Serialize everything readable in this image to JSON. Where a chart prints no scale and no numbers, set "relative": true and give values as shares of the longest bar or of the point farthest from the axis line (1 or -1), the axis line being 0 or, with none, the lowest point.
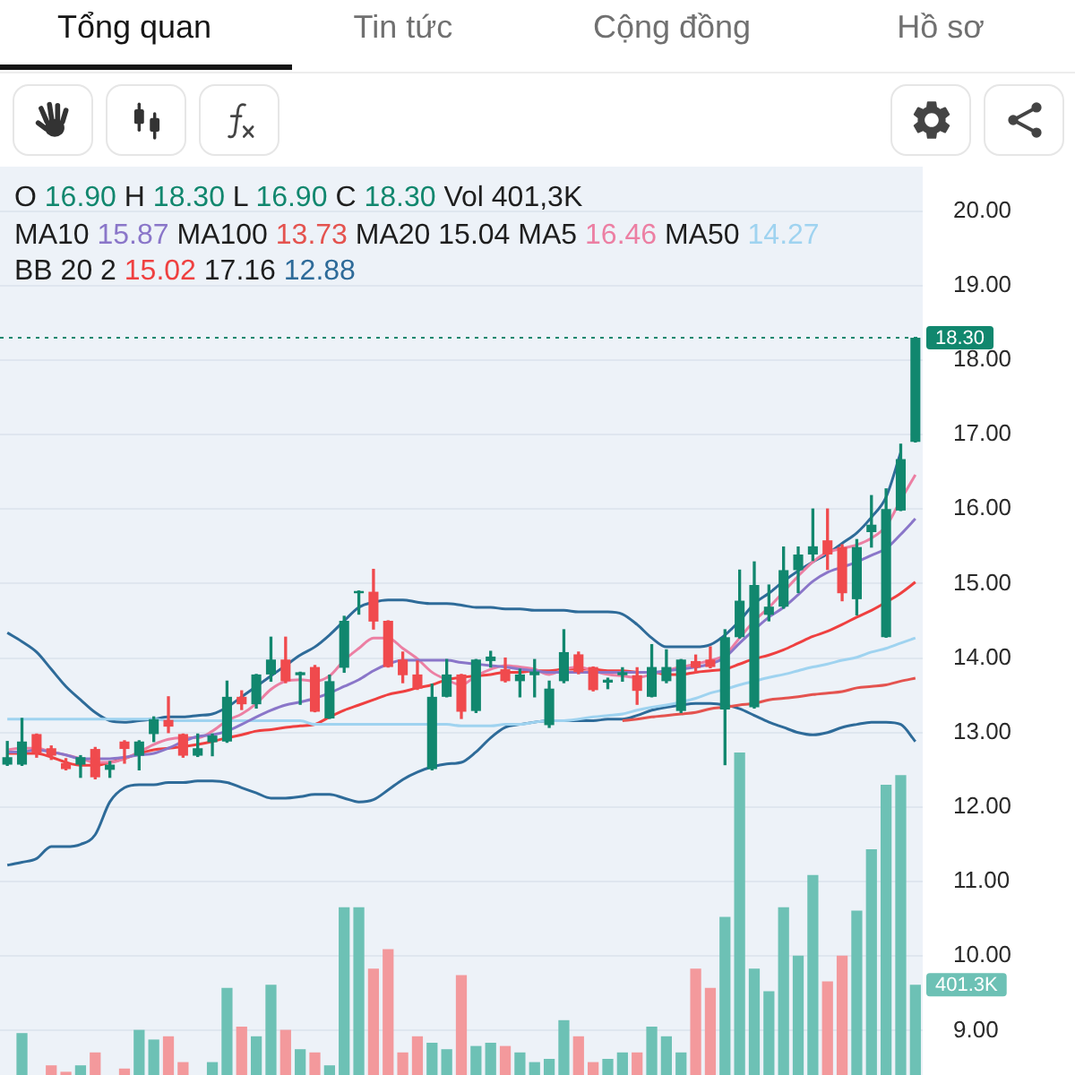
{
  "chart_data": [
    {
      "type": "candlestick",
      "annotations": [
        "Tổng quan",
        "Tin tức",
        "Cộng đồng",
        "Hồ sơ",
        "O 16.90 H 18.30 L 16.90 C 18.30 Vol 401,3K",
        "MA10 15.87 MA100 13.73 MA20 15.04 MA5 16.46 MA50 14.27",
        "BB 20 2 15.02 17.16 12.88"
      ],
      "categories": [
        null,
        null,
        null,
        null,
        null,
        null,
        null,
        null,
        null,
        null,
        null,
        null,
        null,
        null,
        null,
        null,
        null,
        null,
        null,
        null,
        null,
        null,
        null,
        null,
        null,
        null,
        null,
        null,
        null,
        null,
        null,
        null,
        null,
        null,
        null,
        null,
        null,
        null,
        null,
        null,
        null,
        null,
        null,
        null,
        null,
        null,
        null,
        null,
        null,
        null,
        null,
        null,
        null,
        null,
        null,
        null,
        null,
        null,
        null,
        null,
        null,
        null,
        null
      ],
      "ohlc": [
        [
          12.57,
          12.88,
          12.56,
          12.67
        ],
        [
          12.57,
          13.19,
          12.56,
          12.88
        ],
        [
          12.98,
          12.98,
          12.67,
          12.73
        ],
        [
          12.79,
          12.82,
          12.64,
          12.69
        ],
        [
          12.59,
          12.65,
          12.5,
          12.51
        ],
        [
          12.57,
          12.69,
          12.4,
          12.67
        ],
        [
          12.78,
          12.8,
          12.38,
          12.4
        ],
        [
          12.5,
          12.61,
          12.4,
          12.57
        ],
        [
          12.88,
          12.89,
          12.59,
          12.78
        ],
        [
          12.69,
          12.89,
          12.5,
          12.88
        ],
        [
          12.98,
          13.21,
          12.88,
          13.18
        ],
        [
          13.17,
          13.48,
          13.0,
          13.08
        ],
        [
          12.98,
          12.98,
          12.67,
          12.69
        ],
        [
          12.69,
          12.98,
          12.68,
          12.79
        ],
        [
          12.87,
          12.98,
          12.69,
          12.96
        ],
        [
          12.88,
          13.69,
          12.87,
          13.48
        ],
        [
          13.48,
          13.56,
          13.31,
          13.38
        ],
        [
          13.38,
          13.78,
          13.33,
          13.78
        ],
        [
          13.78,
          14.28,
          13.69,
          13.98
        ],
        [
          13.98,
          14.28,
          13.67,
          13.69
        ],
        [
          13.77,
          13.81,
          13.38,
          13.81
        ],
        [
          13.88,
          13.9,
          13.28,
          13.28
        ],
        [
          13.19,
          13.77,
          13.19,
          13.69
        ],
        [
          13.87,
          14.56,
          13.81,
          14.5
        ],
        [
          14.87,
          14.9,
          14.59,
          14.9
        ],
        [
          14.89,
          15.19,
          14.39,
          14.49
        ],
        [
          14.5,
          14.5,
          13.88,
          13.88
        ],
        [
          13.98,
          14.08,
          13.67,
          13.77
        ],
        [
          13.78,
          13.96,
          13.58,
          13.59
        ],
        [
          12.51,
          13.65,
          12.5,
          13.48
        ],
        [
          13.48,
          13.98,
          13.48,
          13.78
        ],
        [
          13.78,
          13.78,
          13.19,
          13.28
        ],
        [
          13.29,
          13.98,
          13.27,
          13.98
        ],
        [
          13.96,
          14.09,
          13.88,
          14.02
        ],
        [
          13.85,
          14.0,
          13.68,
          13.69
        ],
        [
          13.69,
          13.85,
          13.48,
          13.78
        ],
        [
          13.77,
          13.98,
          13.48,
          13.82
        ],
        [
          13.1,
          13.69,
          13.07,
          13.59
        ],
        [
          13.69,
          14.38,
          13.67,
          14.08
        ],
        [
          14.05,
          14.08,
          13.79,
          13.81
        ],
        [
          13.88,
          13.88,
          13.56,
          13.57
        ],
        [
          13.67,
          13.73,
          13.59,
          13.71
        ],
        [
          13.77,
          13.87,
          13.69,
          13.81
        ],
        [
          13.77,
          13.87,
          13.38,
          13.56
        ],
        [
          13.48,
          14.18,
          13.48,
          13.88
        ],
        [
          13.69,
          14.11,
          13.67,
          13.88
        ],
        [
          13.29,
          13.98,
          13.27,
          13.98
        ],
        [
          13.96,
          14.04,
          13.81,
          13.87
        ],
        [
          13.98,
          14.15,
          13.87,
          13.88
        ],
        [
          13.31,
          14.38,
          12.57,
          14.28
        ],
        [
          14.28,
          15.18,
          14.27,
          14.77
        ],
        [
          13.34,
          15.29,
          13.33,
          14.98
        ],
        [
          14.58,
          14.98,
          14.5,
          14.69
        ],
        [
          14.69,
          15.49,
          14.67,
          15.18
        ],
        [
          15.18,
          15.49,
          14.88,
          15.39
        ],
        [
          15.39,
          16.0,
          15.31,
          15.5
        ],
        [
          15.58,
          16.0,
          15.19,
          15.39
        ],
        [
          15.49,
          15.52,
          14.77,
          14.87
        ],
        [
          14.79,
          15.59,
          14.58,
          15.49
        ],
        [
          15.69,
          16.18,
          15.49,
          15.79
        ],
        [
          14.28,
          16.27,
          14.28,
          16.0
        ],
        [
          15.98,
          16.87,
          15.98,
          16.67
        ],
        [
          16.9,
          18.3,
          16.9,
          18.3
        ]
      ],
      "colors": [
        "#11876e",
        "#11876e",
        "#f04a4d",
        "#f04a4d",
        "#f04a4d",
        "#11876e",
        "#f04a4d",
        "#11876e",
        "#f04a4d",
        "#11876e",
        "#11876e",
        "#f04a4d",
        "#f04a4d",
        "#11876e",
        "#11876e",
        "#11876e",
        "#f04a4d",
        "#11876e",
        "#11876e",
        "#f04a4d",
        "#11876e",
        "#f04a4d",
        "#11876e",
        "#11876e",
        "#11876e",
        "#f04a4d",
        "#f04a4d",
        "#f04a4d",
        "#f04a4d",
        "#11876e",
        "#11876e",
        "#f04a4d",
        "#11876e",
        "#11876e",
        "#f04a4d",
        "#11876e",
        "#11876e",
        "#11876e",
        "#11876e",
        "#f04a4d",
        "#f04a4d",
        "#11876e",
        "#11876e",
        "#f04a4d",
        "#11876e",
        "#11876e",
        "#11876e",
        "#f04a4d",
        "#f04a4d",
        "#11876e",
        "#11876e",
        "#11876e",
        "#11876e",
        "#11876e",
        "#11876e",
        "#11876e",
        "#f04a4d",
        "#f04a4d",
        "#11876e",
        "#11876e",
        "#11876e",
        "#11876e",
        "#11876e"
      ],
      "series": [
        {
          "type": "line",
          "color": "#8a76c9",
          "values": [
            12.74,
            12.74,
            12.77,
            12.74,
            12.7,
            12.65,
            12.65,
            12.65,
            12.67,
            12.7,
            12.72,
            12.79,
            12.88,
            12.95,
            12.97,
            13.02,
            13.11,
            13.21,
            13.3,
            13.37,
            13.41,
            13.46,
            13.53,
            13.62,
            13.71,
            13.83,
            13.92,
            13.97,
            13.97,
            13.97,
            13.97,
            13.94,
            13.92,
            13.9,
            13.88,
            13.85,
            13.83,
            13.81,
            13.81,
            13.81,
            13.81,
            13.81,
            13.81,
            13.81,
            13.81,
            13.83,
            13.85,
            13.88,
            13.92,
            14.01,
            14.2,
            14.38,
            14.55,
            14.68,
            14.85,
            15.03,
            15.15,
            15.22,
            15.29,
            15.38,
            15.47,
            15.66,
            15.87
          ]
        },
        {
          "type": "line",
          "color": "#e4534f",
          "values": [
            null,
            null,
            null,
            null,
            null,
            null,
            null,
            null,
            null,
            null,
            null,
            null,
            null,
            null,
            null,
            null,
            null,
            null,
            null,
            null,
            null,
            null,
            null,
            null,
            null,
            null,
            null,
            null,
            null,
            null,
            null,
            null,
            null,
            null,
            null,
            null,
            null,
            null,
            null,
            null,
            null,
            null,
            13.16,
            13.18,
            13.21,
            13.23,
            13.25,
            13.27,
            13.32,
            13.34,
            13.37,
            13.39,
            13.44,
            13.46,
            13.48,
            13.51,
            13.53,
            13.55,
            13.6,
            13.62,
            13.64,
            13.69,
            13.73
          ]
        },
        {
          "type": "line",
          "color": "#ec7fa3",
          "values": [
            12.77,
            12.79,
            12.79,
            12.74,
            12.7,
            12.65,
            12.6,
            12.6,
            12.65,
            12.74,
            12.84,
            12.91,
            12.93,
            12.93,
            13.02,
            13.16,
            13.25,
            13.39,
            13.58,
            13.69,
            13.71,
            13.69,
            13.76,
            13.97,
            14.13,
            14.27,
            14.27,
            14.13,
            13.99,
            13.81,
            13.71,
            13.64,
            13.76,
            13.85,
            13.9,
            13.88,
            13.85,
            13.78,
            13.85,
            13.88,
            13.83,
            13.78,
            13.76,
            13.74,
            13.78,
            13.83,
            13.88,
            13.92,
            13.97,
            14.04,
            14.27,
            14.5,
            14.68,
            14.89,
            15.1,
            15.29,
            15.42,
            15.47,
            15.52,
            15.61,
            15.77,
            16.12,
            16.46
          ]
        },
        {
          "type": "line",
          "color": "#9fd3f0",
          "values": [
            13.18,
            13.18,
            13.18,
            13.18,
            13.18,
            13.18,
            13.18,
            13.18,
            13.18,
            13.18,
            13.18,
            13.16,
            13.16,
            13.16,
            13.16,
            13.16,
            13.16,
            13.16,
            13.16,
            13.16,
            13.16,
            13.11,
            13.11,
            13.11,
            13.11,
            13.11,
            13.11,
            13.11,
            13.11,
            13.11,
            13.11,
            13.09,
            13.09,
            13.09,
            13.11,
            13.11,
            13.14,
            13.16,
            13.16,
            13.18,
            13.21,
            13.23,
            13.25,
            13.3,
            13.34,
            13.37,
            13.41,
            13.46,
            13.53,
            13.58,
            13.64,
            13.69,
            13.74,
            13.78,
            13.83,
            13.88,
            13.92,
            13.97,
            14.01,
            14.08,
            14.13,
            14.2,
            14.27
          ]
        },
        {
          "type": "line",
          "color": "#ef4040",
          "values": [
            12.72,
            12.72,
            12.72,
            12.67,
            12.6,
            12.56,
            12.56,
            12.6,
            12.65,
            12.72,
            12.77,
            12.79,
            12.81,
            12.84,
            12.88,
            12.93,
            12.97,
            13.02,
            13.04,
            13.07,
            13.09,
            13.11,
            13.21,
            13.3,
            13.37,
            13.44,
            13.51,
            13.55,
            13.6,
            13.64,
            13.71,
            13.74,
            13.76,
            13.78,
            13.81,
            13.81,
            13.83,
            13.83,
            13.85,
            13.85,
            13.85,
            13.83,
            13.83,
            13.81,
            13.81,
            13.78,
            13.78,
            13.81,
            13.83,
            13.85,
            13.92,
            13.99,
            14.04,
            14.11,
            14.2,
            14.29,
            14.36,
            14.45,
            14.55,
            14.64,
            14.75,
            14.87,
            15.02
          ]
        },
        {
          "type": "line",
          "color": "#2e6b99",
          "values": [
            14.34,
            14.22,
            14.08,
            13.85,
            13.62,
            13.44,
            13.27,
            13.16,
            13.14,
            13.16,
            13.18,
            13.21,
            13.21,
            13.23,
            13.25,
            13.34,
            13.48,
            13.62,
            13.76,
            13.9,
            14.04,
            14.15,
            14.31,
            14.5,
            14.68,
            14.75,
            14.78,
            14.78,
            14.75,
            14.73,
            14.73,
            14.71,
            14.68,
            14.68,
            14.66,
            14.66,
            14.64,
            14.64,
            14.64,
            14.62,
            14.62,
            14.62,
            14.59,
            14.45,
            14.27,
            14.15,
            14.15,
            14.15,
            14.18,
            14.31,
            14.5,
            14.73,
            14.87,
            15.03,
            15.17,
            15.29,
            15.4,
            15.54,
            15.68,
            15.89,
            16.16,
            16.76,
            null
          ]
        },
        {
          "type": "line",
          "color": "#2e6b99",
          "values": [
            11.22,
            11.26,
            11.31,
            11.47,
            11.47,
            11.5,
            11.63,
            12.07,
            12.26,
            12.3,
            12.3,
            12.33,
            12.33,
            12.35,
            12.35,
            12.33,
            12.26,
            12.19,
            12.12,
            12.12,
            12.14,
            12.17,
            12.17,
            12.12,
            12.07,
            12.1,
            12.23,
            12.37,
            12.47,
            12.54,
            12.58,
            12.6,
            12.74,
            12.93,
            13.07,
            13.11,
            13.14,
            13.16,
            13.16,
            13.16,
            13.16,
            13.18,
            13.18,
            13.23,
            13.3,
            13.34,
            13.37,
            13.39,
            13.39,
            13.37,
            13.32,
            13.23,
            13.14,
            13.07,
            13.0,
            12.97,
            13.0,
            13.07,
            13.11,
            13.14,
            13.14,
            13.11,
            12.88
          ]
        }
      ],
      "ylim": [
        8.4,
        20.6
      ],
      "yticks": [
        {
          "value": 9,
          "label": "9.00"
        },
        {
          "value": 10,
          "label": "10.00"
        },
        {
          "value": 11,
          "label": "11.00"
        },
        {
          "value": 12,
          "label": "12.00"
        },
        {
          "value": 13,
          "label": "13.00"
        },
        {
          "value": 14,
          "label": "14.00"
        },
        {
          "value": 15,
          "label": "15.00"
        },
        {
          "value": 16,
          "label": "16.00"
        },
        {
          "value": 17,
          "label": "17.00"
        },
        {
          "value": 18,
          "label": "18.00"
        },
        {
          "value": 19,
          "label": "19.00"
        },
        {
          "value": 20,
          "label": "20.00"
        }
      ],
      "grid": "y",
      "ref_lines": [
        {
          "axis": "y",
          "value": 18.3,
          "label": "18.30",
          "color": "#11876e",
          "line_style": "dotted"
        }
      ]
    },
    {
      "type": "bar",
      "relative": true,
      "annotations": [
        "401.3K"
      ],
      "categories": [
        null,
        null,
        null,
        null,
        null,
        null,
        null,
        null,
        null,
        null,
        null,
        null,
        null,
        null,
        null,
        null,
        null,
        null,
        null,
        null,
        null,
        null,
        null,
        null,
        null,
        null,
        null,
        null,
        null,
        null,
        null,
        null,
        null,
        null,
        null,
        null,
        null,
        null,
        null,
        null,
        null,
        null,
        null,
        null,
        null,
        null,
        null,
        null,
        null,
        null,
        null,
        null,
        null,
        null,
        null,
        null,
        null,
        null,
        null,
        null,
        null,
        null,
        null
      ],
      "values": [
        null,
        0.13,
        null,
        0.03,
        0.01,
        0.03,
        0.07,
        null,
        0.02,
        0.14,
        0.11,
        0.12,
        0.04,
        null,
        0.04,
        0.27,
        0.15,
        0.12,
        0.28,
        0.14,
        0.08,
        0.07,
        0.03,
        0.52,
        0.52,
        0.33,
        0.39,
        0.07,
        0.12,
        0.1,
        0.08,
        0.31,
        0.09,
        0.1,
        0.09,
        0.07,
        0.04,
        0.05,
        0.17,
        0.12,
        0.04,
        0.05,
        0.07,
        0.07,
        0.15,
        0.12,
        0.07,
        0.33,
        0.27,
        0.49,
        1,
        0.33,
        0.26,
        0.52,
        0.37,
        0.62,
        0.29,
        0.37,
        0.51,
        0.7,
        0.9,
        0.93,
        0.28
      ],
      "colors": [
        "#6dc1b5",
        "#6dc1b5",
        "#f3999c",
        "#f3999c",
        "#f3999c",
        "#6dc1b5",
        "#f3999c",
        "#6dc1b5",
        "#f3999c",
        "#6dc1b5",
        "#6dc1b5",
        "#f3999c",
        "#f3999c",
        "#6dc1b5",
        "#6dc1b5",
        "#6dc1b5",
        "#f3999c",
        "#6dc1b5",
        "#6dc1b5",
        "#f3999c",
        "#6dc1b5",
        "#f3999c",
        "#6dc1b5",
        "#6dc1b5",
        "#6dc1b5",
        "#f3999c",
        "#f3999c",
        "#f3999c",
        "#f3999c",
        "#6dc1b5",
        "#6dc1b5",
        "#f3999c",
        "#6dc1b5",
        "#6dc1b5",
        "#f3999c",
        "#6dc1b5",
        "#6dc1b5",
        "#6dc1b5",
        "#6dc1b5",
        "#f3999c",
        "#f3999c",
        "#6dc1b5",
        "#6dc1b5",
        "#f3999c",
        "#6dc1b5",
        "#6dc1b5",
        "#6dc1b5",
        "#f3999c",
        "#f3999c",
        "#6dc1b5",
        "#6dc1b5",
        "#6dc1b5",
        "#6dc1b5",
        "#6dc1b5",
        "#6dc1b5",
        "#6dc1b5",
        "#f3999c",
        "#f3999c",
        "#6dc1b5",
        "#6dc1b5",
        "#6dc1b5",
        "#6dc1b5",
        "#6dc1b5"
      ]
    }
  ]
}
